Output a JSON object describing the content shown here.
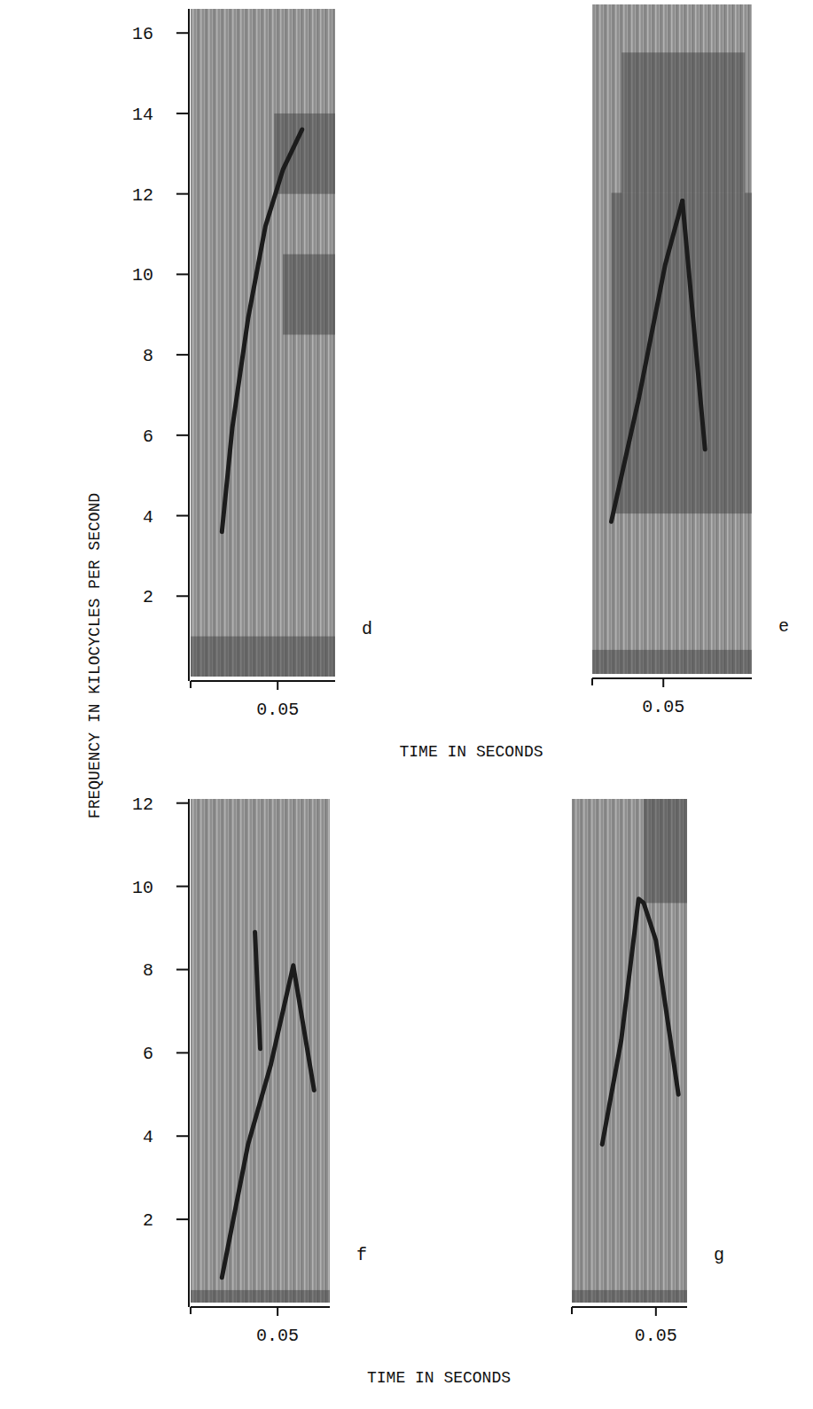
{
  "chart_data": [
    {
      "type": "spectrogram",
      "title": "d",
      "x_label": "TIME IN SECONDS",
      "y_label": "FREQUENCY IN KILOCYCLES PER SECOND",
      "xlim": [
        0,
        0.083
      ],
      "ylim": [
        0,
        16.6
      ],
      "xticks": [
        0.05
      ],
      "yticks": [
        2,
        4,
        6,
        8,
        10,
        12,
        14,
        16
      ],
      "series": [
        {
          "color": "#1c1c1c",
          "x": [
            0.018,
            0.024,
            0.033,
            0.043,
            0.053,
            0.064
          ],
          "values": [
            3.6,
            6.2,
            8.9,
            11.2,
            12.6,
            13.6
          ]
        }
      ],
      "bands": [
        {
          "x": [
            0.048,
            0.083
          ],
          "y": [
            12,
            14
          ]
        },
        {
          "x": [
            0.053,
            0.083
          ],
          "y": [
            8.5,
            10.5
          ]
        },
        {
          "x": [
            0,
            0.083
          ],
          "y": [
            0,
            1
          ]
        }
      ]
    },
    {
      "type": "spectrogram",
      "title": "e",
      "tick_labels": "x",
      "xlim": [
        0.009,
        0.101
      ],
      "ylim": [
        0,
        16.7
      ],
      "xticks": [
        0.05
      ],
      "series": [
        {
          "color": "#1c1c1c",
          "x": [
            0.02,
            0.036,
            0.051,
            0.061
          ],
          "values": [
            3.8,
            6.9,
            10.2,
            11.8
          ]
        },
        {
          "color": "#1c1c1c",
          "x": [
            0.061,
            0.074
          ],
          "values": [
            11.8,
            5.6
          ]
        }
      ],
      "bands": [
        {
          "x": [
            0.026,
            0.097
          ],
          "y": [
            12,
            15.5
          ]
        },
        {
          "x": [
            0.02,
            0.101
          ],
          "y": [
            4,
            12
          ]
        },
        {
          "x": [
            0.009,
            0.101
          ],
          "y": [
            0,
            0.6
          ]
        }
      ]
    },
    {
      "type": "spectrogram",
      "title": "f",
      "x_label": "TIME IN SECONDS",
      "xlim": [
        0,
        0.08
      ],
      "ylim": [
        0,
        12.1
      ],
      "xticks": [
        0.05
      ],
      "yticks": [
        2,
        4,
        6,
        8,
        10,
        12
      ],
      "series": [
        {
          "color": "#1c1c1c",
          "x": [
            0.018,
            0.033,
            0.046,
            0.059,
            0.071
          ],
          "values": [
            0.6,
            3.8,
            5.7,
            8.1,
            5.1
          ]
        },
        {
          "color": "#1c1c1c",
          "x": [
            0.037,
            0.04
          ],
          "values": [
            8.9,
            6.1
          ]
        }
      ],
      "bands": [
        {
          "x": [
            0,
            0.08
          ],
          "y": [
            0,
            0.3
          ]
        }
      ]
    },
    {
      "type": "spectrogram",
      "title": "g",
      "tick_labels": "x",
      "xlim": [
        0.0015,
        0.068
      ],
      "ylim": [
        0,
        12.1
      ],
      "xticks": [
        0.05
      ],
      "series": [
        {
          "color": "#1c1c1c",
          "x": [
            0.019,
            0.03,
            0.04,
            0.043,
            0.05,
            0.063
          ],
          "values": [
            3.8,
            6.3,
            9.7,
            9.6,
            8.7,
            5.0
          ]
        }
      ],
      "bands": [
        {
          "x": [
            0.043,
            0.068
          ],
          "y": [
            9.6,
            12.1
          ]
        },
        {
          "x": [
            0.0015,
            0.068
          ],
          "y": [
            0,
            0.3
          ]
        }
      ]
    }
  ]
}
